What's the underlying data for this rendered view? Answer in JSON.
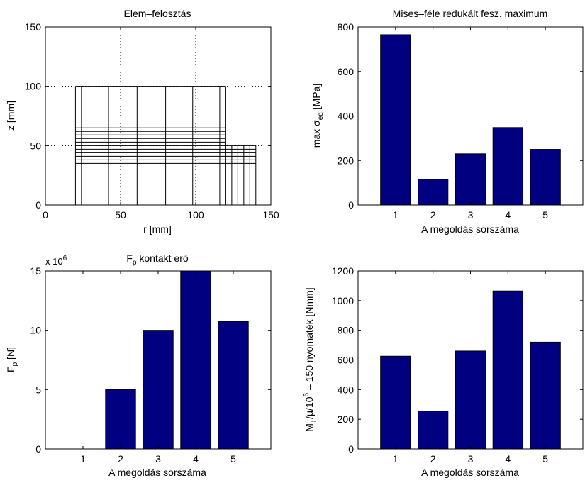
{
  "chart_data": [
    {
      "id": "mesh",
      "type": "diagram",
      "title": "Elem–felosztás",
      "xlabel": "r [mm]",
      "ylabel": "z [mm]",
      "xlim": [
        0,
        150
      ],
      "ylim": [
        0,
        150
      ],
      "xticks": [
        "0",
        "50",
        "100",
        "150"
      ],
      "yticks": [
        "0",
        "50",
        "100",
        "150"
      ],
      "grid": true,
      "regions": [
        {
          "r": [
            20,
            120
          ],
          "z": [
            0,
            100
          ]
        },
        {
          "r": [
            120,
            140
          ],
          "z": [
            0,
            50
          ]
        }
      ],
      "vertical_lines": [
        {
          "r": 20,
          "z": [
            0,
            100
          ]
        },
        {
          "r": 24,
          "z": [
            0,
            100
          ]
        },
        {
          "r": 42,
          "z": [
            0,
            100
          ]
        },
        {
          "r": 61,
          "z": [
            0,
            100
          ]
        },
        {
          "r": 80,
          "z": [
            0,
            100
          ]
        },
        {
          "r": 98,
          "z": [
            0,
            100
          ]
        },
        {
          "r": 116,
          "z": [
            0,
            100
          ]
        },
        {
          "r": 120,
          "z": [
            0,
            100
          ]
        },
        {
          "r": 124,
          "z": [
            0,
            50
          ]
        },
        {
          "r": 128,
          "z": [
            0,
            50
          ]
        },
        {
          "r": 132,
          "z": [
            0,
            50
          ]
        },
        {
          "r": 136,
          "z": [
            0,
            50
          ]
        },
        {
          "r": 140,
          "z": [
            0,
            50
          ]
        }
      ],
      "horizontal_lines": [
        {
          "z": 0,
          "r": [
            20,
            140
          ]
        },
        {
          "z": 35,
          "r": [
            20,
            140
          ]
        },
        {
          "z": 38,
          "r": [
            20,
            140
          ]
        },
        {
          "z": 41,
          "r": [
            20,
            140
          ]
        },
        {
          "z": 44,
          "r": [
            20,
            140
          ]
        },
        {
          "z": 47,
          "r": [
            20,
            140
          ]
        },
        {
          "z": 50,
          "r": [
            20,
            140
          ]
        },
        {
          "z": 53,
          "r": [
            20,
            120
          ]
        },
        {
          "z": 56,
          "r": [
            20,
            120
          ]
        },
        {
          "z": 59,
          "r": [
            20,
            120
          ]
        },
        {
          "z": 62,
          "r": [
            20,
            120
          ]
        },
        {
          "z": 65,
          "r": [
            20,
            120
          ]
        },
        {
          "z": 100,
          "r": [
            20,
            120
          ]
        }
      ]
    },
    {
      "id": "mises",
      "type": "bar",
      "title": "Mises–féle redukált fesz. maximum",
      "xlabel": "A megoldás sorszáma",
      "ylabel": {
        "main": "max σ",
        "sub": "eq",
        "rest": " [MPa]"
      },
      "categories": [
        "1",
        "2",
        "3",
        "4",
        "5"
      ],
      "values": [
        765,
        115,
        230,
        348,
        250
      ],
      "ylim": [
        0,
        800
      ],
      "yticks": [
        "0",
        "200",
        "400",
        "600",
        "800"
      ],
      "color": "#000080"
    },
    {
      "id": "contact",
      "type": "bar",
      "title": {
        "main": "F",
        "sub": "p",
        "rest": " kontakt erõ"
      },
      "xlabel": "A megoldás sorszáma",
      "ylabel": {
        "main": "F",
        "sub": "p",
        "rest": " [N]"
      },
      "multiplier": {
        "base": "x 10",
        "exp": "6"
      },
      "categories": [
        "1",
        "2",
        "3",
        "4",
        "5"
      ],
      "values": [
        0,
        5.0,
        10.0,
        15.0,
        10.75
      ],
      "ylim": [
        0,
        15
      ],
      "yticks": [
        "0",
        "5",
        "10",
        "15"
      ],
      "color": "#000080"
    },
    {
      "id": "torque",
      "type": "bar",
      "title": "",
      "xlabel": "A megoldás sorszáma",
      "ylabel": {
        "p1": "M",
        "s1": "T",
        "p2": "/μ/10",
        "s2": "6",
        "p3": " – 150 nyomaték  [Nmm]"
      },
      "categories": [
        "1",
        "2",
        "3",
        "4",
        "5"
      ],
      "values": [
        625,
        255,
        660,
        1065,
        720
      ],
      "ylim": [
        0,
        1200
      ],
      "yticks": [
        "0",
        "200",
        "400",
        "600",
        "800",
        "1000",
        "1200"
      ],
      "color": "#000080"
    }
  ]
}
